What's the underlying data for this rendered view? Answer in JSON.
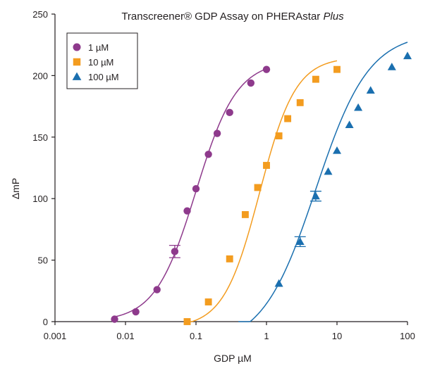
{
  "chart_data": {
    "type": "scatter",
    "title": "Transcreener® GDP Assay on PHERAstar ",
    "title_italic": "Plus",
    "xlabel": "GDP µM",
    "ylabel": "ΔmP",
    "x_scale": "log",
    "xlim": [
      0.001,
      100
    ],
    "ylim": [
      0,
      250
    ],
    "x_ticks": [
      0.001,
      0.01,
      0.1,
      1,
      10,
      100
    ],
    "x_tick_labels": [
      "0.001",
      "0.01",
      "0.1",
      "1",
      "10",
      "100"
    ],
    "y_ticks": [
      0,
      50,
      100,
      150,
      200,
      250
    ],
    "y_tick_labels": [
      "0",
      "50",
      "100",
      "150",
      "200",
      "250"
    ],
    "grid": false,
    "legend_position": "top-left",
    "series": [
      {
        "name": "1 µM",
        "color": "#8e3a8c",
        "marker": "circle",
        "fit": {
          "bottom": 0,
          "top": 212,
          "ec50": 0.1,
          "hill": 1.5,
          "x_from": 0.007,
          "x_to": 1.0
        },
        "points": [
          {
            "x": 0.007,
            "y": 2
          },
          {
            "x": 0.014,
            "y": 8
          },
          {
            "x": 0.028,
            "y": 26
          },
          {
            "x": 0.05,
            "y": 57,
            "err": 5
          },
          {
            "x": 0.075,
            "y": 90
          },
          {
            "x": 0.1,
            "y": 108
          },
          {
            "x": 0.15,
            "y": 136
          },
          {
            "x": 0.2,
            "y": 153
          },
          {
            "x": 0.3,
            "y": 170
          },
          {
            "x": 0.6,
            "y": 194
          },
          {
            "x": 1.0,
            "y": 205
          }
        ]
      },
      {
        "name": "10 µM",
        "color": "#f39c1f",
        "marker": "square",
        "fit": {
          "bottom": -5,
          "top": 215,
          "ec50": 0.8,
          "hill": 1.7,
          "x_from": 0.07,
          "x_to": 10
        },
        "points": [
          {
            "x": 0.075,
            "y": 0
          },
          {
            "x": 0.15,
            "y": 16
          },
          {
            "x": 0.3,
            "y": 51
          },
          {
            "x": 0.5,
            "y": 87
          },
          {
            "x": 0.75,
            "y": 109
          },
          {
            "x": 1.0,
            "y": 127
          },
          {
            "x": 1.5,
            "y": 151
          },
          {
            "x": 2.0,
            "y": 165
          },
          {
            "x": 3.0,
            "y": 178
          },
          {
            "x": 5.0,
            "y": 197
          },
          {
            "x": 10,
            "y": 205
          }
        ]
      },
      {
        "name": "100 µM",
        "color": "#1a6faf",
        "marker": "triangle",
        "fit": {
          "bottom": -20,
          "top": 235,
          "ec50": 5.0,
          "hill": 1.15,
          "x_from": 0.4,
          "x_to": 100
        },
        "points": [
          {
            "x": 1.5,
            "y": 31
          },
          {
            "x": 3.0,
            "y": 65,
            "err": 4
          },
          {
            "x": 5.0,
            "y": 102,
            "err": 4
          },
          {
            "x": 7.5,
            "y": 122
          },
          {
            "x": 10,
            "y": 139
          },
          {
            "x": 15,
            "y": 160
          },
          {
            "x": 20,
            "y": 174
          },
          {
            "x": 30,
            "y": 188
          },
          {
            "x": 60,
            "y": 207
          },
          {
            "x": 100,
            "y": 216
          }
        ]
      }
    ]
  }
}
